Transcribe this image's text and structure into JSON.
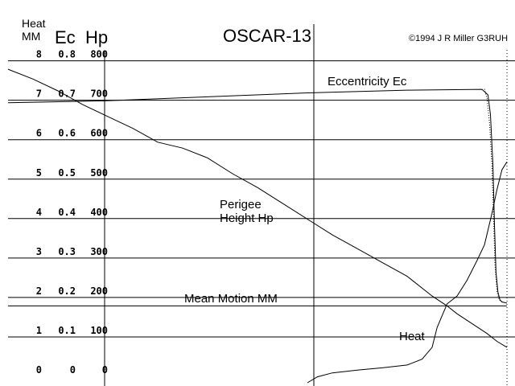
{
  "chart_data": {
    "type": "line",
    "title": "OSCAR-13",
    "copyright": "©1994 J R Miller G3RUH",
    "axis_headers": {
      "heat_line1": "Heat",
      "heat_line2": "MM",
      "ec": "Ec",
      "hp": "Hp"
    },
    "ticks": [
      {
        "heat": "8",
        "ec": "0.8",
        "hp": "800",
        "value": 8
      },
      {
        "heat": "7",
        "ec": "0.7",
        "hp": "700",
        "value": 7
      },
      {
        "heat": "6",
        "ec": "0.6",
        "hp": "600",
        "value": 6
      },
      {
        "heat": "5",
        "ec": "0.5",
        "hp": "500",
        "value": 5
      },
      {
        "heat": "4",
        "ec": "0.4",
        "hp": "400",
        "value": 4
      },
      {
        "heat": "3",
        "ec": "0.3",
        "hp": "300",
        "value": 3
      },
      {
        "heat": "2",
        "ec": "0.2",
        "hp": "200",
        "value": 2
      },
      {
        "heat": "1",
        "ec": "0.1",
        "hp": "100",
        "value": 1
      },
      {
        "heat": "0",
        "ec": "0",
        "hp": "0",
        "value": 0
      }
    ],
    "ylim": [
      0,
      8.4
    ],
    "xlim": [
      0,
      100
    ],
    "grid": true,
    "annotations": {
      "eccentricity": "Eccentricity Ec",
      "perigee_line1": "Perigee",
      "perigee_line2": "Height Hp",
      "mean_motion": "Mean Motion MM",
      "heat": "Heat"
    },
    "series": [
      {
        "name": "Eccentricity Ec",
        "style": "solid",
        "points": [
          [
            0,
            7.1
          ],
          [
            20,
            7.15
          ],
          [
            40,
            7.25
          ],
          [
            60,
            7.35
          ],
          [
            80,
            7.42
          ],
          [
            95,
            7.44
          ],
          [
            96.2,
            7.3
          ],
          [
            96.7,
            6.8
          ],
          [
            97.2,
            5.5
          ],
          [
            97.5,
            4.0
          ],
          [
            97.8,
            2.8
          ],
          [
            98.2,
            2.3
          ],
          [
            98.6,
            2.1
          ],
          [
            99.0,
            2.05
          ],
          [
            100,
            2.02
          ]
        ]
      },
      {
        "name": "Perigee Height Hp",
        "style": "solid",
        "points": [
          [
            0,
            7.95
          ],
          [
            5,
            7.7
          ],
          [
            10,
            7.4
          ],
          [
            15,
            7.05
          ],
          [
            20,
            6.75
          ],
          [
            25,
            6.45
          ],
          [
            30,
            6.1
          ],
          [
            35,
            5.95
          ],
          [
            40,
            5.7
          ],
          [
            45,
            5.3
          ],
          [
            50,
            4.95
          ],
          [
            55,
            4.55
          ],
          [
            60,
            4.15
          ],
          [
            65,
            3.75
          ],
          [
            70,
            3.4
          ],
          [
            75,
            3.05
          ],
          [
            80,
            2.7
          ],
          [
            85,
            2.2
          ],
          [
            88,
            1.95
          ],
          [
            90,
            1.75
          ],
          [
            93,
            1.5
          ],
          [
            96,
            1.25
          ],
          [
            98,
            1.05
          ],
          [
            100,
            0.9
          ]
        ]
      },
      {
        "name": "Mean Motion MM",
        "style": "solid",
        "points": [
          [
            0,
            1.95
          ],
          [
            30,
            1.95
          ],
          [
            60,
            1.95
          ],
          [
            100,
            1.95
          ]
        ]
      },
      {
        "name": "Heat",
        "style": "solid",
        "points": [
          [
            60,
            0
          ],
          [
            62,
            0.15
          ],
          [
            65,
            0.25
          ],
          [
            70,
            0.32
          ],
          [
            75,
            0.38
          ],
          [
            80,
            0.45
          ],
          [
            83,
            0.6
          ],
          [
            85,
            0.9
          ],
          [
            86,
            1.4
          ],
          [
            88,
            2.0
          ],
          [
            90,
            2.2
          ],
          [
            92,
            2.6
          ],
          [
            94,
            3.1
          ],
          [
            95.5,
            3.5
          ],
          [
            97,
            4.3
          ],
          [
            98,
            4.9
          ],
          [
            99,
            5.4
          ],
          [
            100,
            5.6
          ]
        ]
      },
      {
        "name": "",
        "style": "dotted",
        "points": [
          [
            95.5,
            7.45
          ],
          [
            96,
            7.2
          ],
          [
            96.5,
            6.6
          ],
          [
            97,
            5.5
          ],
          [
            97.3,
            4.2
          ],
          [
            97.6,
            3.0
          ],
          [
            98,
            2.3
          ],
          [
            98.5,
            2.1
          ],
          [
            99,
            2.05
          ]
        ]
      }
    ]
  }
}
